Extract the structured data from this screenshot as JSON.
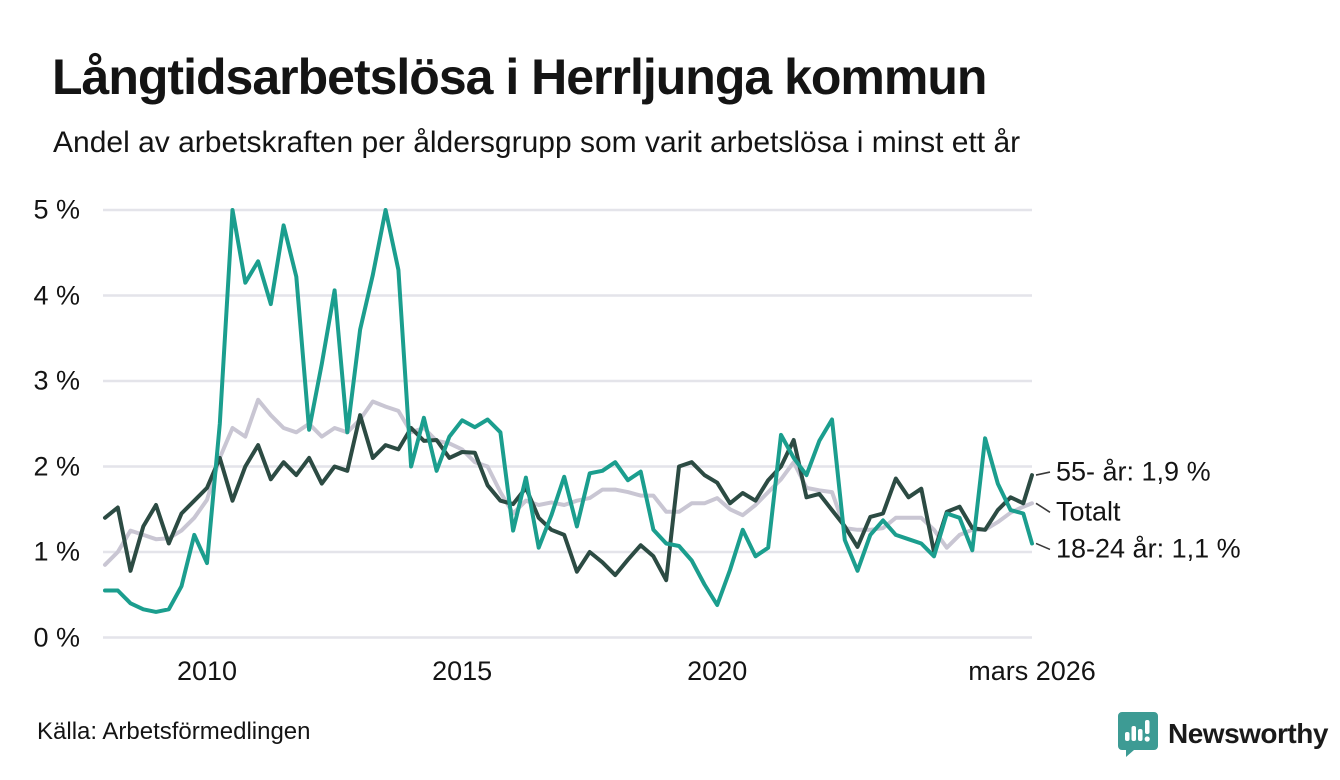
{
  "header": {
    "title": "Långtidsarbetslösa i Herrljunga kommun",
    "subtitle": "Andel av arbetskraften per åldersgrupp som varit arbetslösa i minst ett år"
  },
  "footer": {
    "source": "Källa: Arbetsförmedlingen",
    "brand": "Newsworthy",
    "brand_color": "#3d9b94"
  },
  "chart_data": {
    "type": "line",
    "title": "Långtidsarbetslösa i Herrljunga kommun",
    "subtitle": "Andel av arbetskraften per åldersgrupp som varit arbetslösa i minst ett år",
    "unit": "%",
    "grid": "horizontal",
    "legend_position": "right-end-labels",
    "x_start": 2008.0,
    "x_step": 0.25,
    "xlim": [
      2008.0,
      2026.17
    ],
    "ylim": [
      0,
      5
    ],
    "yticks": [
      {
        "v": 0,
        "label": "0 %"
      },
      {
        "v": 1,
        "label": "1 %"
      },
      {
        "v": 2,
        "label": "2 %"
      },
      {
        "v": 3,
        "label": "3 %"
      },
      {
        "v": 4,
        "label": "4 %"
      },
      {
        "v": 5,
        "label": "5 %"
      }
    ],
    "xticks": [
      {
        "t": 2010.0,
        "label": "2010"
      },
      {
        "t": 2015.0,
        "label": "2015"
      },
      {
        "t": 2020.0,
        "label": "2020"
      },
      {
        "t": 2026.17,
        "label": "mars 2026"
      }
    ],
    "series": [
      {
        "name": "Totalt",
        "end_label": "Totalt",
        "color": "#c9c6d3",
        "values": [
          0.85,
          1.0,
          1.25,
          1.2,
          1.15,
          1.16,
          1.25,
          1.4,
          1.61,
          2.1,
          2.45,
          2.35,
          2.78,
          2.6,
          2.45,
          2.4,
          2.5,
          2.35,
          2.45,
          2.4,
          2.55,
          2.76,
          2.7,
          2.65,
          2.4,
          2.45,
          2.3,
          2.27,
          2.2,
          2.05,
          2.0,
          1.7,
          1.45,
          1.6,
          1.55,
          1.58,
          1.55,
          1.6,
          1.63,
          1.73,
          1.73,
          1.7,
          1.66,
          1.66,
          1.47,
          1.47,
          1.57,
          1.57,
          1.63,
          1.5,
          1.43,
          1.55,
          1.7,
          1.85,
          2.05,
          1.75,
          1.72,
          1.7,
          1.28,
          1.26,
          1.26,
          1.28,
          1.4,
          1.4,
          1.4,
          1.26,
          1.05,
          1.2,
          1.26,
          1.26,
          1.35,
          1.46,
          1.53,
          1.57
        ]
      },
      {
        "name": "55- år",
        "end_label": "55- år: 1,9 %",
        "end_value_text": "1,9 %",
        "color": "#2c4b43",
        "values": [
          1.4,
          1.52,
          0.78,
          1.3,
          1.55,
          1.1,
          1.45,
          1.6,
          1.75,
          2.1,
          1.6,
          2.0,
          2.25,
          1.85,
          2.05,
          1.9,
          2.1,
          1.8,
          2.0,
          1.95,
          2.6,
          2.1,
          2.25,
          2.2,
          2.45,
          2.3,
          2.31,
          2.1,
          2.17,
          2.16,
          1.78,
          1.6,
          1.56,
          1.75,
          1.4,
          1.26,
          1.2,
          0.77,
          1.0,
          0.88,
          0.73,
          0.91,
          1.08,
          0.95,
          0.67,
          2.0,
          2.05,
          1.9,
          1.81,
          1.57,
          1.69,
          1.6,
          1.84,
          2.0,
          2.31,
          1.64,
          1.68,
          1.49,
          1.3,
          1.06,
          1.41,
          1.45,
          1.86,
          1.64,
          1.74,
          1.0,
          1.47,
          1.53,
          1.28,
          1.26,
          1.49,
          1.64,
          1.57,
          1.9
        ]
      },
      {
        "name": "18-24 år",
        "end_label": "18-24 år: 1,1 %",
        "end_value_text": "1,1 %",
        "color": "#1b9e8e",
        "values": [
          0.55,
          0.55,
          0.4,
          0.33,
          0.3,
          0.33,
          0.6,
          1.2,
          0.87,
          2.5,
          5.0,
          4.15,
          4.4,
          3.9,
          4.82,
          4.22,
          2.43,
          3.2,
          4.06,
          2.4,
          3.6,
          4.24,
          5.0,
          4.3,
          2.0,
          2.57,
          1.95,
          2.35,
          2.54,
          2.46,
          2.55,
          2.4,
          1.25,
          1.87,
          1.05,
          1.43,
          1.88,
          1.3,
          1.92,
          1.95,
          2.05,
          1.84,
          1.94,
          1.26,
          1.1,
          1.07,
          0.9,
          0.62,
          0.38,
          0.79,
          1.26,
          0.95,
          1.05,
          2.37,
          2.1,
          1.9,
          2.3,
          2.55,
          1.14,
          0.78,
          1.2,
          1.37,
          1.2,
          1.15,
          1.1,
          0.95,
          1.45,
          1.4,
          1.02,
          2.33,
          1.8,
          1.49,
          1.45,
          1.1
        ]
      }
    ]
  },
  "colors": {
    "grid": "#e4e4ea",
    "text": "#141414",
    "connector": "#3a3a3a"
  }
}
